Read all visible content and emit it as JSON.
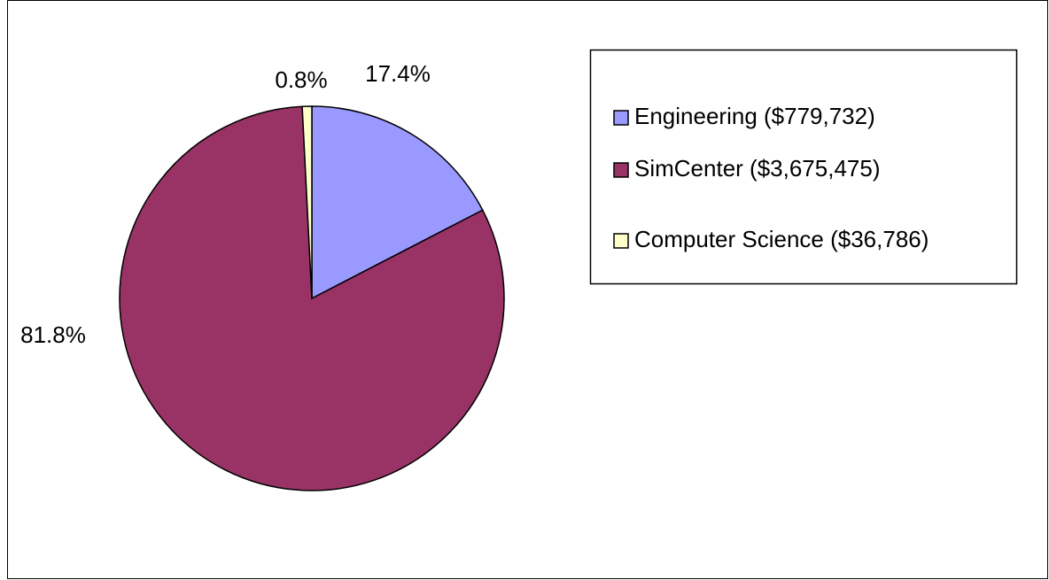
{
  "chart_data": {
    "type": "pie",
    "categories": [
      "Engineering ($779,732)",
      "SimCenter ($3,675,475)",
      "Computer Science ($36,786)"
    ],
    "values": [
      17.4,
      81.8,
      0.8
    ],
    "value_labels": [
      "17.4%",
      "81.8%",
      "0.8%"
    ],
    "colors": [
      "#9999ff",
      "#993366",
      "#ffffcc"
    ],
    "legend": "right"
  }
}
